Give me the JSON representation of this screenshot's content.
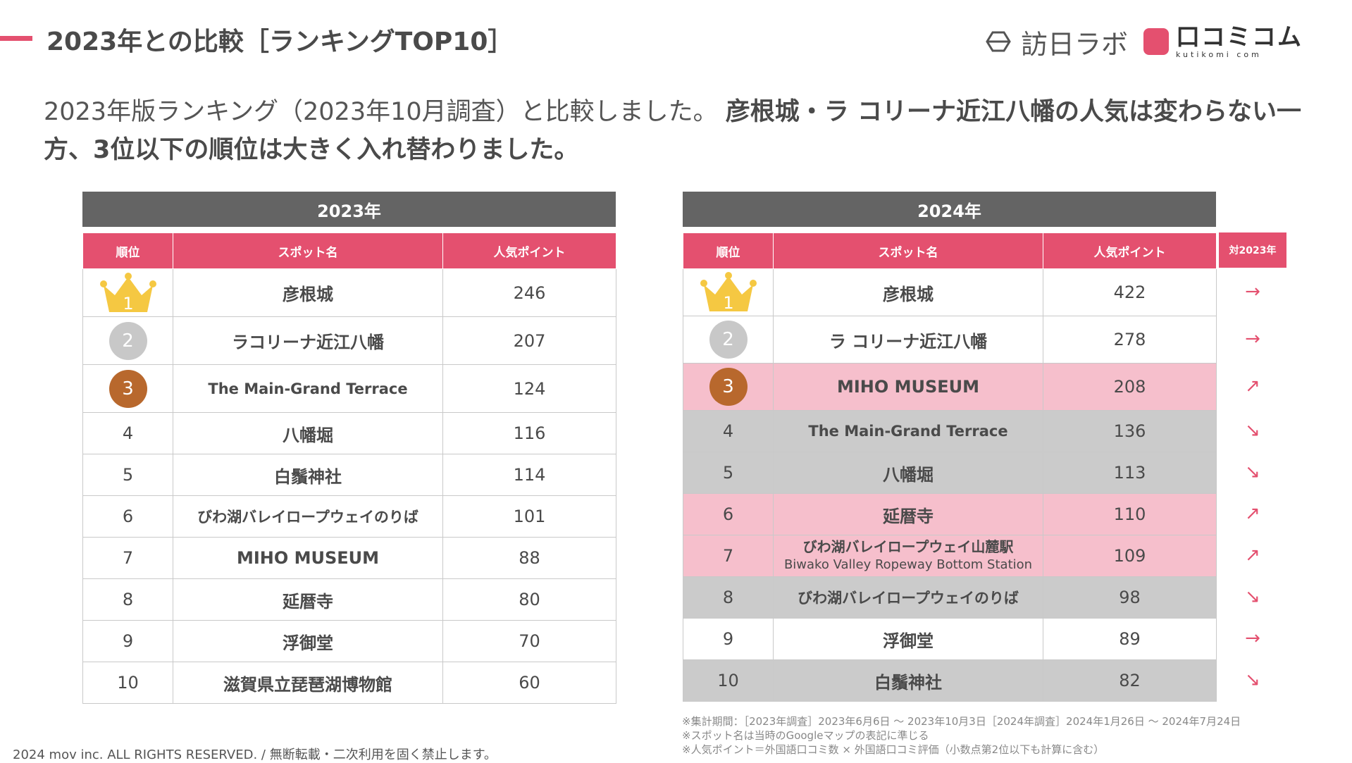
{
  "header": {
    "title": "2023年との比較［ランキングTOP10］",
    "logo1": "訪日ラボ",
    "logo2_main": "口コミコム",
    "logo2_sub": "kutikomi com"
  },
  "intro": {
    "normal": "2023年版ランキング（2023年10月調査）と比較しました。",
    "bold": "彦根城・ラ コリーナ近江八幡の人気は変わらない一方、3位以下の順位は大きく入れ替わりました。"
  },
  "columns": {
    "rank": "順位",
    "spot": "スポット名",
    "points": "人気ポイント",
    "compare": "対2023年"
  },
  "table2023": {
    "year_label": "2023年",
    "rows": [
      {
        "rank": "1",
        "spot": "彦根城",
        "points": "246"
      },
      {
        "rank": "2",
        "spot": "ラコリーナ近江八幡",
        "points": "207"
      },
      {
        "rank": "3",
        "spot": "The Main-Grand Terrace",
        "points": "124"
      },
      {
        "rank": "4",
        "spot": "八幡堀",
        "points": "116"
      },
      {
        "rank": "5",
        "spot": "白鬚神社",
        "points": "114"
      },
      {
        "rank": "6",
        "spot": "びわ湖バレイロープウェイのりば",
        "points": "101"
      },
      {
        "rank": "7",
        "spot": "MIHO MUSEUM",
        "points": "88"
      },
      {
        "rank": "8",
        "spot": "延暦寺",
        "points": "80"
      },
      {
        "rank": "9",
        "spot": "浮御堂",
        "points": "70"
      },
      {
        "rank": "10",
        "spot": "滋賀県立琵琶湖博物館",
        "points": "60"
      }
    ]
  },
  "table2024": {
    "year_label": "2024年",
    "rows": [
      {
        "rank": "1",
        "spot": "彦根城",
        "spot2": "",
        "points": "422",
        "trend": "→"
      },
      {
        "rank": "2",
        "spot": "ラ コリーナ近江八幡",
        "spot2": "",
        "points": "278",
        "trend": "→"
      },
      {
        "rank": "3",
        "spot": "MIHO MUSEUM",
        "spot2": "",
        "points": "208",
        "trend": "↗"
      },
      {
        "rank": "4",
        "spot": "The Main-Grand Terrace",
        "spot2": "",
        "points": "136",
        "trend": "↘"
      },
      {
        "rank": "5",
        "spot": "八幡堀",
        "spot2": "",
        "points": "113",
        "trend": "↘"
      },
      {
        "rank": "6",
        "spot": "延暦寺",
        "spot2": "",
        "points": "110",
        "trend": "↗"
      },
      {
        "rank": "7",
        "spot": "びわ湖バレイロープウェイ山麓駅",
        "spot2": "Biwako Valley Ropeway Bottom Station",
        "points": "109",
        "trend": "↗"
      },
      {
        "rank": "8",
        "spot": "びわ湖バレイロープウェイのりば",
        "spot2": "",
        "points": "98",
        "trend": "↘"
      },
      {
        "rank": "9",
        "spot": "浮御堂",
        "spot2": "",
        "points": "89",
        "trend": "→"
      },
      {
        "rank": "10",
        "spot": "白鬚神社",
        "spot2": "",
        "points": "82",
        "trend": "↘"
      }
    ]
  },
  "notes": [
    "※集計期間：［2023年調査］2023年6月6日 〜 2023年10月3日［2024年調査］2024年1月26日 〜 2024年7月24日",
    "※スポット名は当時のGoogleマップの表記に準じる",
    "※人気ポイント＝外国語口コミ数 × 外国語口コミ評価（小数点第2位以下も計算に含む）"
  ],
  "copyright": "2024 mov inc. ALL RIGHTS RESERVED. / 無断転載・二次利用を固く禁止します。",
  "colors": {
    "accent": "#e4506f",
    "header_gray": "#646464",
    "highlight_pink": "#f6bfcc",
    "highlight_gray": "#cbcbcb",
    "gold": "#f5c842",
    "silver": "#c8c8c8",
    "bronze": "#b8682d"
  }
}
